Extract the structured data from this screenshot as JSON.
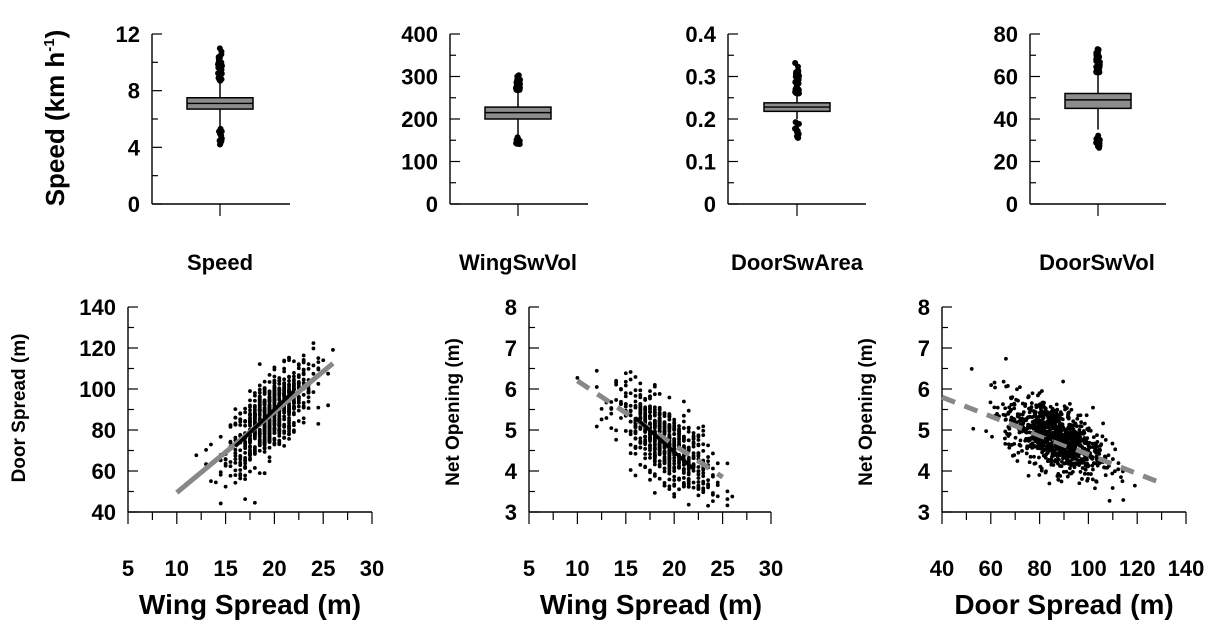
{
  "chart_data": [
    {
      "type": "box",
      "id": "speed",
      "category": "Speed",
      "ylabel": "Speed (km h",
      "ylabel_sup": "-1",
      "ylabel_close": ")",
      "ylim": [
        0,
        12
      ],
      "yticks": [
        0,
        4,
        8,
        12
      ],
      "box": {
        "q1": 6.7,
        "median": 7.1,
        "q3": 7.5,
        "whisker_low": 5.4,
        "whisker_high": 8.7
      },
      "outliers_low_range": [
        4.2,
        5.4
      ],
      "outliers_high_range": [
        8.7,
        11.1
      ]
    },
    {
      "type": "box",
      "id": "wingswvol",
      "category": "WingSwVol",
      "ylabel": "",
      "ylim": [
        0,
        400
      ],
      "yticks": [
        0,
        100,
        200,
        300,
        400
      ],
      "box": {
        "q1": 200,
        "median": 215,
        "q3": 228,
        "whisker_low": 160,
        "whisker_high": 268
      },
      "outliers_low_range": [
        140,
        160
      ],
      "outliers_high_range": [
        268,
        305
      ]
    },
    {
      "type": "box",
      "id": "doorswarea",
      "category": "DoorSwArea",
      "ylabel": "",
      "ylim": [
        0,
        0.4
      ],
      "yticks": [
        0,
        0.1,
        0.2,
        0.3,
        0.4
      ],
      "box": {
        "q1": 0.218,
        "median": 0.228,
        "q3": 0.238,
        "whisker_low": 0.2,
        "whisker_high": 0.26
      },
      "outliers_low_range": [
        0.155,
        0.2
      ],
      "outliers_high_range": [
        0.26,
        0.335
      ]
    },
    {
      "type": "box",
      "id": "doorswvol",
      "category": "DoorSwVol",
      "ylabel": "",
      "ylim": [
        0,
        80
      ],
      "yticks": [
        0,
        20,
        40,
        60,
        80
      ],
      "box": {
        "q1": 45,
        "median": 49,
        "q3": 52,
        "whisker_low": 35,
        "whisker_high": 62
      },
      "outliers_low_range": [
        26,
        35
      ],
      "outliers_high_range": [
        62,
        73
      ]
    },
    {
      "type": "scatter",
      "id": "door-vs-wing",
      "xlabel": "Wing Spread (m)",
      "ylabel": "Door Spread (m)",
      "xlim": [
        5,
        30
      ],
      "ylim": [
        40,
        140
      ],
      "xticks": [
        5,
        10,
        15,
        20,
        25,
        30
      ],
      "yticks": [
        40,
        60,
        80,
        100,
        120,
        140
      ],
      "cloud": {
        "n": 700,
        "x_mean": 19.5,
        "x_sd": 2.2,
        "x_min": 12,
        "x_max": 26,
        "slope": 3.9,
        "intercept": 10.5,
        "y_sd": 9,
        "x_step": 0.5
      },
      "fit_line": {
        "x": [
          10,
          26
        ],
        "y": [
          49.5,
          112.5
        ],
        "style": "solid",
        "color": "#888888"
      },
      "local_line": {
        "x": [
          16,
          22
        ],
        "y": [
          72,
          99
        ],
        "style": "solid",
        "color": "#000000"
      }
    },
    {
      "type": "scatter",
      "id": "net-vs-wing",
      "xlabel": "Wing Spread (m)",
      "ylabel": "Net Opening (m)",
      "xlim": [
        5,
        30
      ],
      "ylim": [
        3,
        8
      ],
      "xticks": [
        5,
        10,
        15,
        20,
        25,
        30
      ],
      "yticks": [
        3,
        4,
        5,
        6,
        7,
        8
      ],
      "cloud": {
        "n": 650,
        "x_mean": 19,
        "x_sd": 2.4,
        "x_min": 10,
        "x_max": 26,
        "slope": -0.165,
        "intercept": 7.85,
        "y_sd": 0.45,
        "x_step": 0.5
      },
      "fit_line": {
        "x": [
          10,
          25
        ],
        "y": [
          6.2,
          3.85
        ],
        "style": "dashed",
        "color": "#888888"
      },
      "local_line": {
        "x": [
          16,
          22
        ],
        "y": [
          5.3,
          4.05
        ],
        "style": "solid",
        "color": "#000000"
      }
    },
    {
      "type": "scatter",
      "id": "net-vs-door",
      "xlabel": "Door Spread (m)",
      "ylabel": "Net Opening (m)",
      "xlim": [
        40,
        140
      ],
      "ylim": [
        3,
        8
      ],
      "xticks": [
        40,
        60,
        80,
        100,
        120,
        140
      ],
      "yticks": [
        3,
        4,
        5,
        6,
        7,
        8
      ],
      "cloud": {
        "n": 900,
        "x_mean": 86,
        "x_sd": 10,
        "x_min": 45,
        "x_max": 128,
        "slope": -0.024,
        "intercept": 6.9,
        "y_sd": 0.4,
        "x_step": 0
      },
      "fit_line": {
        "x": [
          40,
          128
        ],
        "y": [
          5.8,
          3.75
        ],
        "style": "dashed",
        "color": "#888888"
      },
      "local_line": {
        "x": [
          78,
          95
        ],
        "y": [
          5.0,
          4.6
        ],
        "style": "solid",
        "color": "#000000"
      }
    }
  ]
}
